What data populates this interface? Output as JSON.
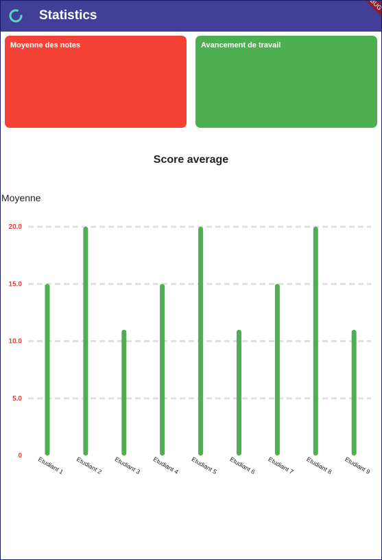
{
  "app": {
    "title": "Statistics",
    "debug_banner": "DEBUG"
  },
  "cards": [
    {
      "label": "Moyenne des notes",
      "color": "#f44336"
    },
    {
      "label": "Avancement de travail",
      "color": "#4caf50"
    }
  ],
  "colors": {
    "appbar": "#433e98",
    "bar": "#4caf50",
    "tick_label": "#e53935",
    "grid": "#e0e0e0"
  },
  "chart_data": {
    "type": "bar",
    "title": "Score average",
    "ylabel": "Moyenne",
    "xlabel": "",
    "categories": [
      "Etudiant 1",
      "Etudiant 2",
      "Etudiant 3",
      "Etudiant 4",
      "Etudiant 5",
      "Etudiant 6",
      "Etudiant 7",
      "Etudiant 8",
      "Etudiant 9"
    ],
    "values": [
      15,
      20,
      11,
      15,
      20,
      11,
      15,
      20,
      11
    ],
    "yticks": [
      "0",
      "5.0",
      "10.0",
      "15.0",
      "20.0"
    ],
    "ytick_values": [
      0,
      5,
      10,
      15,
      20
    ],
    "ylim": [
      0,
      20
    ],
    "grid": "dashed horizontal",
    "legend": "none"
  }
}
